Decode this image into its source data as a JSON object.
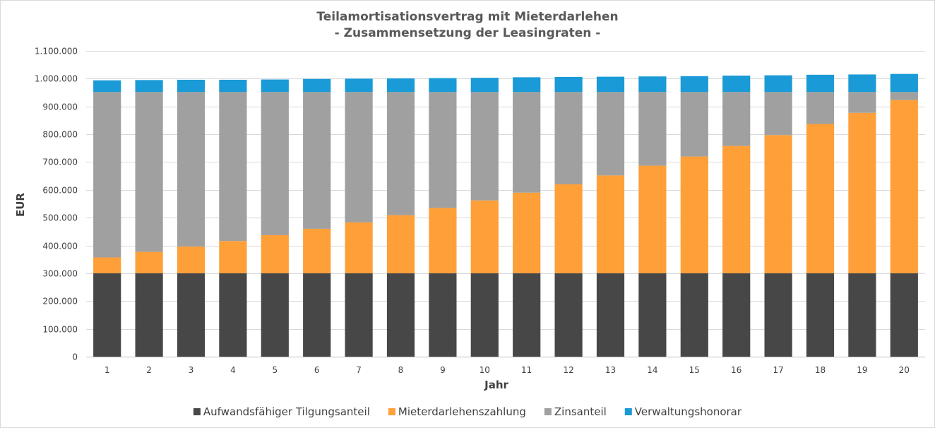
{
  "chart_data": {
    "type": "bar",
    "stacked": true,
    "title": [
      "Teilamortisationsvertrag mit Mieterdarlehen",
      "- Zusammensetzung der Leasingraten -"
    ],
    "xlabel": "Jahr",
    "ylabel": "EUR",
    "ylim": [
      0,
      1100000
    ],
    "yticks": [
      "0",
      "100.000",
      "200.000",
      "300.000",
      "400.000",
      "500.000",
      "600.000",
      "700.000",
      "800.000",
      "900.000",
      "1.000.000",
      "1.100.000"
    ],
    "grid": true,
    "legend_position": "bottom",
    "categories": [
      "1",
      "2",
      "3",
      "4",
      "5",
      "6",
      "7",
      "8",
      "9",
      "10",
      "11",
      "12",
      "13",
      "14",
      "15",
      "16",
      "17",
      "18",
      "19",
      "20"
    ],
    "series": [
      {
        "name": "Aufwandsfähiger Tilgungsanteil",
        "color": "#474747",
        "values": [
          300000,
          300000,
          300000,
          300000,
          300000,
          300000,
          300000,
          300000,
          300000,
          300000,
          300000,
          300000,
          300000,
          300000,
          300000,
          300000,
          300000,
          300000,
          300000,
          300000
        ]
      },
      {
        "name": "Mieterdarlehenszahlung",
        "color": "#FF9F38",
        "values": [
          57000,
          77000,
          96000,
          116000,
          137000,
          160000,
          183000,
          209000,
          235000,
          262000,
          290000,
          320000,
          352000,
          387000,
          420000,
          458000,
          497000,
          537000,
          577000,
          623000
        ]
      },
      {
        "name": "Zinsanteil",
        "color": "#A0A0A0",
        "values": [
          595000,
          575000,
          556000,
          536000,
          515000,
          492000,
          469000,
          443000,
          417000,
          390000,
          362000,
          332000,
          300000,
          265000,
          232000,
          194000,
          155000,
          115000,
          75000,
          29000
        ]
      },
      {
        "name": "Verwaltungshonorar",
        "color": "#1A9AD6",
        "values": [
          42000,
          43000,
          44000,
          44000,
          45000,
          47000,
          48000,
          49000,
          50000,
          51000,
          53000,
          54000,
          55000,
          56000,
          57000,
          59000,
          60000,
          62000,
          63000,
          65000
        ]
      }
    ]
  }
}
